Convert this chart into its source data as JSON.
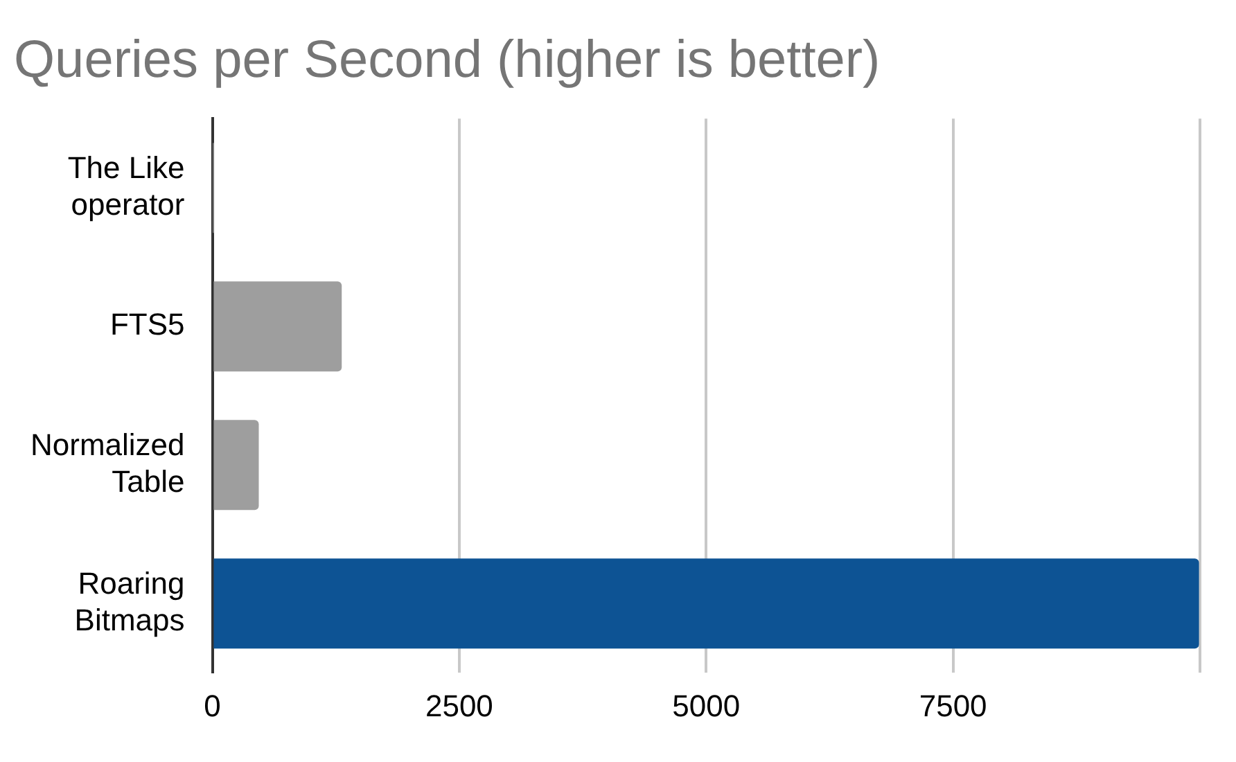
{
  "chart_data": {
    "type": "bar",
    "orientation": "horizontal",
    "title": "Queries per Second (higher is better)",
    "categories": [
      "The Like operator",
      "FTS5",
      "Normalized Table",
      "Roaring Bitmaps"
    ],
    "values": [
      5,
      1310,
      470,
      9990
    ],
    "colors": [
      "#9e9e9e",
      "#9e9e9e",
      "#9e9e9e",
      "#0d5394"
    ],
    "xlim": [
      0,
      10000
    ],
    "xticks": [
      0,
      2500,
      5000,
      7500,
      {
        "value": 10000,
        "label": null
      }
    ],
    "grid": "x",
    "legend": false
  }
}
